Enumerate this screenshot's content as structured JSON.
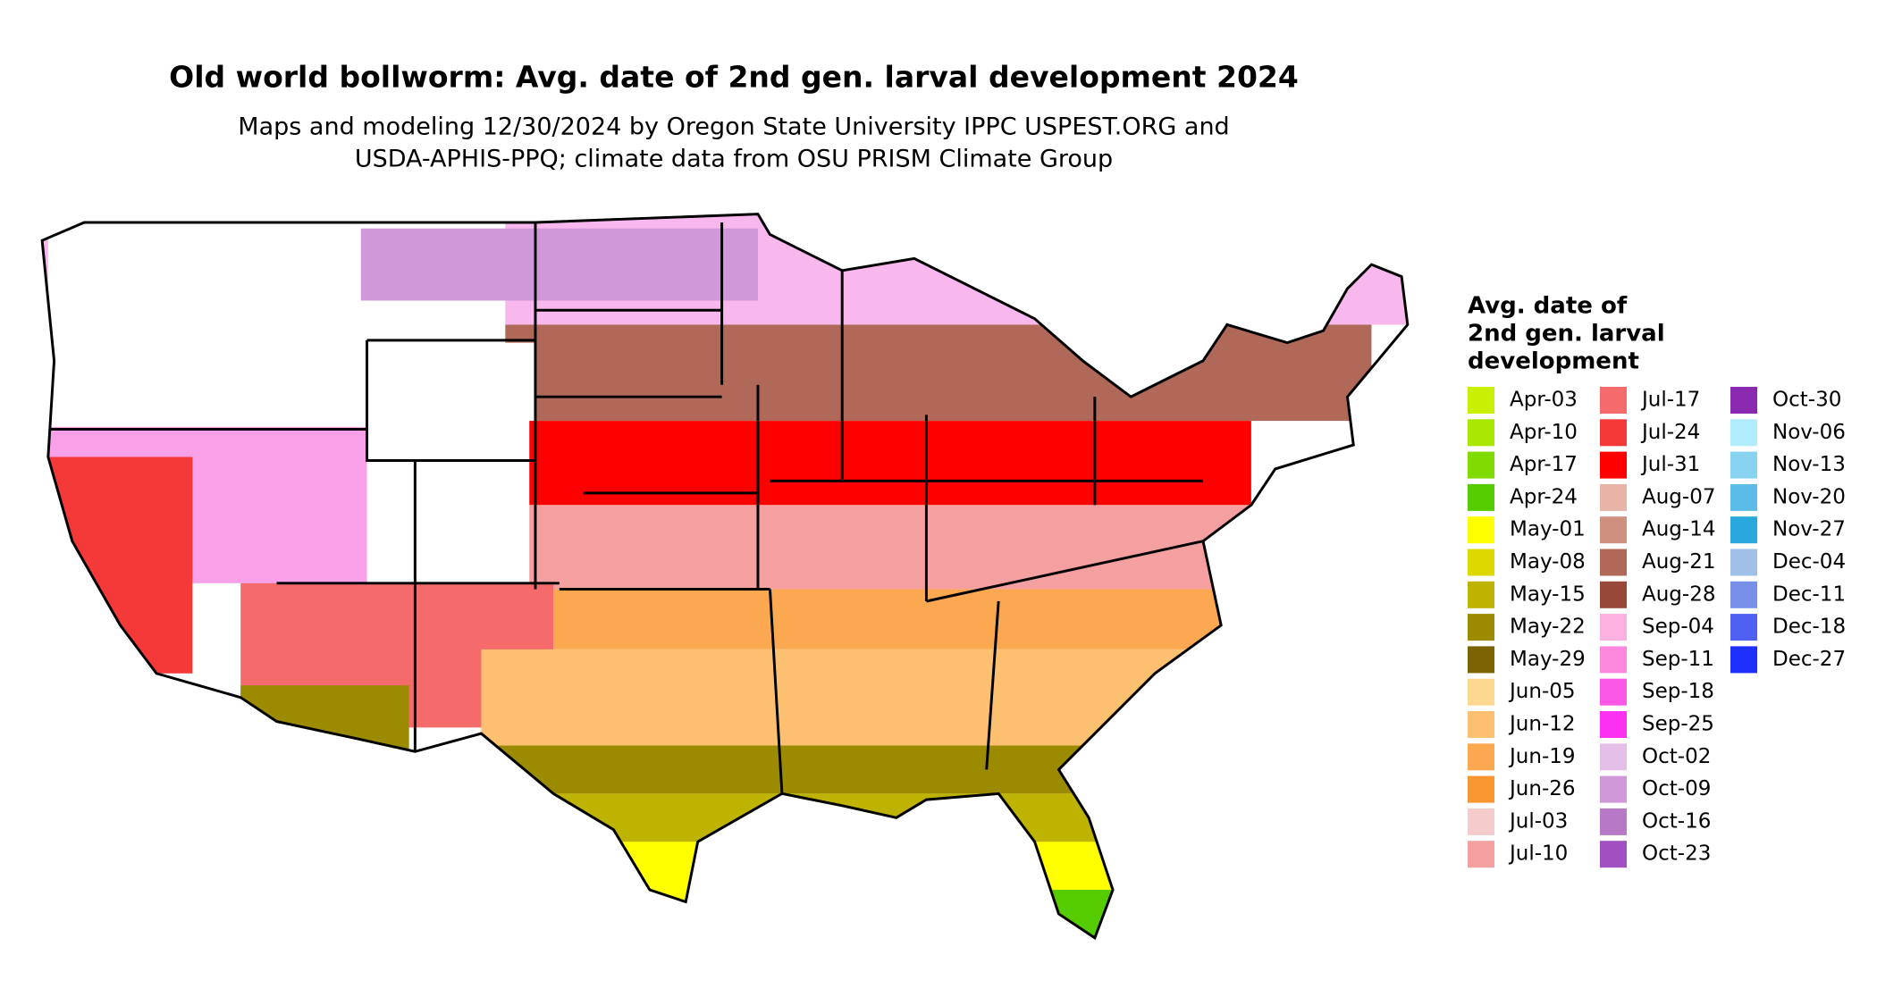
{
  "title": "Old world bollworm: Avg. date of 2nd gen. larval development 2024",
  "subtitle": [
    "Maps and modeling 12/30/2024 by Oregon State University IPPC USPEST.ORG and",
    "USDA-APHIS-PPQ; climate data from OSU PRISM Climate Group"
  ],
  "legend": {
    "title": [
      "Avg. date of",
      "2nd gen. larval",
      "development"
    ],
    "items": [
      {
        "label": "Apr-03",
        "color": "#c8f000"
      },
      {
        "label": "Apr-10",
        "color": "#a8e800"
      },
      {
        "label": "Apr-17",
        "color": "#80dc00"
      },
      {
        "label": "Apr-24",
        "color": "#55cc00"
      },
      {
        "label": "May-01",
        "color": "#ffff00"
      },
      {
        "label": "May-08",
        "color": "#dcd800"
      },
      {
        "label": "May-15",
        "color": "#bdb300"
      },
      {
        "label": "May-22",
        "color": "#9c8a00"
      },
      {
        "label": "May-29",
        "color": "#7a6300"
      },
      {
        "label": "Jun-05",
        "color": "#fdd890"
      },
      {
        "label": "Jun-12",
        "color": "#fcc070"
      },
      {
        "label": "Jun-19",
        "color": "#fca850"
      },
      {
        "label": "Jun-26",
        "color": "#fa9630"
      },
      {
        "label": "Jul-03",
        "color": "#f5cccc"
      },
      {
        "label": "Jul-10",
        "color": "#f5a0a0"
      },
      {
        "label": "Jul-17",
        "color": "#f56b6b"
      },
      {
        "label": "Jul-24",
        "color": "#f53838"
      },
      {
        "label": "Jul-31",
        "color": "#ff0000"
      },
      {
        "label": "Aug-07",
        "color": "#e8b4a8"
      },
      {
        "label": "Aug-14",
        "color": "#d09080"
      },
      {
        "label": "Aug-21",
        "color": "#b06858"
      },
      {
        "label": "Aug-28",
        "color": "#984838"
      },
      {
        "label": "Sep-04",
        "color": "#fcb0e0"
      },
      {
        "label": "Sep-11",
        "color": "#fc88e0"
      },
      {
        "label": "Sep-18",
        "color": "#fc58e8"
      },
      {
        "label": "Sep-25",
        "color": "#fc30f0"
      },
      {
        "label": "Oct-02",
        "color": "#e4c0e8"
      },
      {
        "label": "Oct-09",
        "color": "#d098d8"
      },
      {
        "label": "Oct-16",
        "color": "#b878c8"
      },
      {
        "label": "Oct-23",
        "color": "#a050c0"
      },
      {
        "label": "Oct-30",
        "color": "#8a2ab0"
      },
      {
        "label": "Nov-06",
        "color": "#b0ecfc"
      },
      {
        "label": "Nov-13",
        "color": "#88d4f0"
      },
      {
        "label": "Nov-20",
        "color": "#5cbce8"
      },
      {
        "label": "Nov-27",
        "color": "#28a8dc"
      },
      {
        "label": "Dec-04",
        "color": "#a0c0e8"
      },
      {
        "label": "Dec-11",
        "color": "#7890e8"
      },
      {
        "label": "Dec-18",
        "color": "#5060f0"
      },
      {
        "label": "Dec-27",
        "color": "#2030fc"
      }
    ]
  }
}
